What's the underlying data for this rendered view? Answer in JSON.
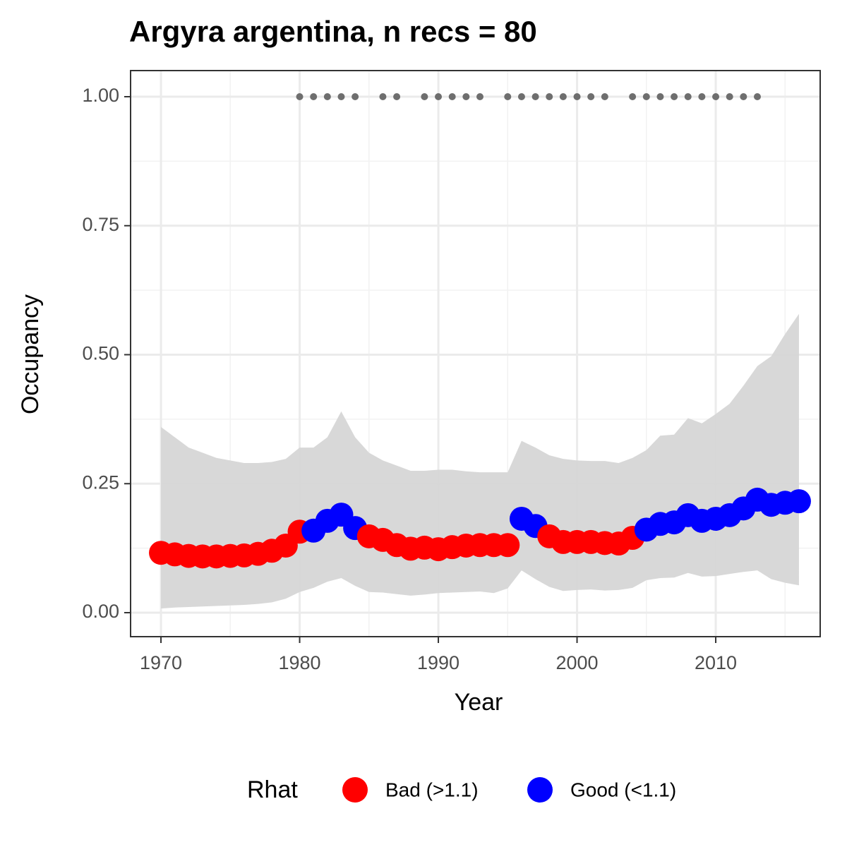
{
  "chart_data": {
    "type": "scatter",
    "title": "Argyra argentina, n recs = 80",
    "x_label": "Year",
    "y_label": "Occupancy",
    "legend_title": "Rhat",
    "x": [
      1970,
      1971,
      1972,
      1973,
      1974,
      1975,
      1976,
      1977,
      1978,
      1979,
      1980,
      1981,
      1982,
      1983,
      1984,
      1985,
      1986,
      1987,
      1988,
      1989,
      1990,
      1991,
      1992,
      1993,
      1994,
      1995,
      1996,
      1997,
      1998,
      1999,
      2000,
      2001,
      2002,
      2003,
      2004,
      2005,
      2006,
      2007,
      2008,
      2009,
      2010,
      2011,
      2012,
      2013,
      2014,
      2015,
      2016
    ],
    "series": [
      {
        "name": "Bad (>1.1)",
        "color": "#ff0000",
        "values": [
          0.116,
          0.113,
          0.11,
          0.109,
          0.109,
          0.11,
          0.111,
          0.114,
          0.12,
          0.13,
          0.157,
          null,
          null,
          null,
          null,
          0.148,
          0.141,
          0.131,
          0.124,
          0.126,
          0.123,
          0.127,
          0.13,
          0.131,
          0.131,
          0.131,
          null,
          null,
          0.148,
          0.137,
          0.137,
          0.137,
          0.135,
          0.134,
          0.145,
          null,
          null,
          null,
          null,
          null,
          null,
          null,
          null,
          null,
          null,
          null,
          null
        ]
      },
      {
        "name": "Good (<1.1)",
        "color": "#0000ff",
        "values": [
          null,
          null,
          null,
          null,
          null,
          null,
          null,
          null,
          null,
          null,
          null,
          0.159,
          0.178,
          0.19,
          0.164,
          null,
          null,
          null,
          null,
          null,
          null,
          null,
          null,
          null,
          null,
          null,
          0.182,
          0.168,
          null,
          null,
          null,
          null,
          null,
          null,
          null,
          0.161,
          0.172,
          0.175,
          0.189,
          0.178,
          0.182,
          0.189,
          0.202,
          0.219,
          0.209,
          0.213,
          0.216
        ]
      }
    ],
    "ribbon": {
      "color": "#d6d6d6",
      "upper": [
        0.36,
        0.34,
        0.32,
        0.31,
        0.3,
        0.295,
        0.29,
        0.29,
        0.292,
        0.298,
        0.32,
        0.32,
        0.34,
        0.39,
        0.34,
        0.31,
        0.295,
        0.285,
        0.275,
        0.275,
        0.277,
        0.277,
        0.274,
        0.272,
        0.272,
        0.272,
        0.333,
        0.32,
        0.305,
        0.298,
        0.295,
        0.294,
        0.294,
        0.29,
        0.3,
        0.315,
        0.343,
        0.345,
        0.377,
        0.367,
        0.385,
        0.405,
        0.44,
        0.478,
        0.497,
        0.54,
        0.579
      ],
      "lower": [
        0.008,
        0.01,
        0.011,
        0.012,
        0.013,
        0.014,
        0.015,
        0.017,
        0.02,
        0.027,
        0.04,
        0.048,
        0.06,
        0.067,
        0.052,
        0.04,
        0.039,
        0.036,
        0.033,
        0.035,
        0.038,
        0.039,
        0.04,
        0.041,
        0.038,
        0.047,
        0.082,
        0.065,
        0.05,
        0.042,
        0.044,
        0.045,
        0.043,
        0.044,
        0.048,
        0.063,
        0.067,
        0.068,
        0.077,
        0.07,
        0.071,
        0.075,
        0.079,
        0.082,
        0.065,
        0.058,
        0.053
      ]
    },
    "records": {
      "color": "#6e6e6e",
      "x": [
        1980,
        1981,
        1982,
        1983,
        1984,
        1986,
        1987,
        1989,
        1990,
        1991,
        1992,
        1993,
        1995,
        1996,
        1997,
        1998,
        1999,
        2000,
        2001,
        2002,
        2004,
        2005,
        2006,
        2007,
        2008,
        2009,
        2010,
        2011,
        2012,
        2013
      ],
      "values": [
        1,
        1,
        1,
        1,
        1,
        1,
        1,
        1,
        1,
        1,
        1,
        1,
        1,
        1,
        1,
        1,
        1,
        1,
        1,
        1,
        1,
        1,
        1,
        1,
        1,
        1,
        1,
        1,
        1,
        1
      ]
    },
    "xlim": [
      1967.81,
      2017.53
    ],
    "ylim": [
      -0.0465,
      1.0506
    ],
    "xticks": [
      1970,
      1980,
      1990,
      2000,
      2010
    ],
    "yticks": [
      {
        "value": 0,
        "label": "0.00"
      },
      {
        "value": 0.25,
        "label": "0.25"
      },
      {
        "value": 0.5,
        "label": "0.50"
      },
      {
        "value": 0.75,
        "label": "0.75"
      },
      {
        "value": 1,
        "label": "1.00"
      }
    ],
    "x_minor_grid": [
      1975,
      1985,
      1995,
      2005,
      2015
    ],
    "y_minor_grid": [
      0.125,
      0.375,
      0.625,
      0.875
    ],
    "grid": true
  }
}
